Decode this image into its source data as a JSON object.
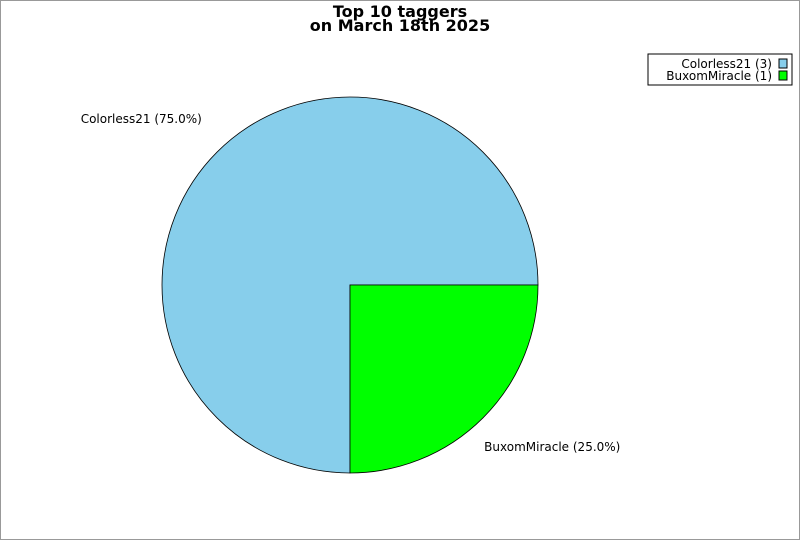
{
  "chart_data": {
    "type": "pie",
    "title": [
      "Top 10 taggers",
      "on March 18th 2025"
    ],
    "slices": [
      {
        "label": "Colorless21",
        "value": 3,
        "percent_label": "Colorless21 (75.0%)",
        "legend_label": "Colorless21 (3)",
        "color": "#87ceeb"
      },
      {
        "label": "BuxomMiracle",
        "value": 1,
        "percent_label": "BuxomMiracle (25.0%)",
        "legend_label": "BuxomMiracle (1)",
        "color": "#00ff00"
      }
    ],
    "start_angle_deg": 0,
    "direction": "counterclockwise",
    "legend_position": "top-right"
  }
}
